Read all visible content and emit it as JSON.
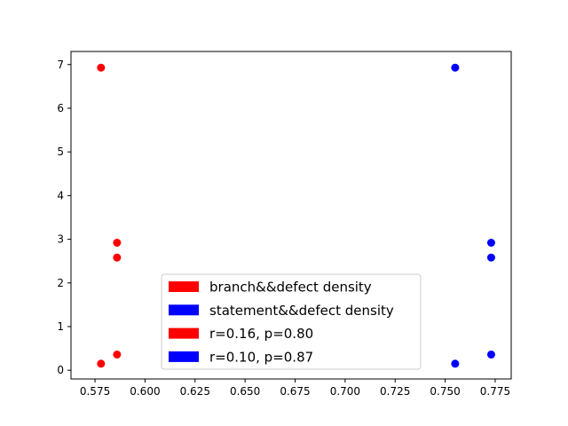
{
  "chart_data": {
    "type": "scatter",
    "title": "",
    "xlabel": "",
    "ylabel": "",
    "xlim": [
      0.563,
      0.783
    ],
    "ylim": [
      -0.2,
      7.3
    ],
    "x_ticks": [
      0.575,
      0.6,
      0.625,
      0.65,
      0.675,
      0.7,
      0.725,
      0.75,
      0.775
    ],
    "x_tick_labels": [
      "0.575",
      "0.600",
      "0.625",
      "0.650",
      "0.675",
      "0.700",
      "0.725",
      "0.750",
      "0.775"
    ],
    "y_ticks": [
      0,
      1,
      2,
      3,
      4,
      5,
      6,
      7
    ],
    "y_tick_labels": [
      "0",
      "1",
      "2",
      "3",
      "4",
      "5",
      "6",
      "7"
    ],
    "grid": false,
    "series": [
      {
        "name": "branch&&defect density",
        "color": "#ff0000",
        "x": [
          0.578,
          0.586,
          0.586,
          0.578,
          0.586
        ],
        "y": [
          6.93,
          2.92,
          2.58,
          0.15,
          0.36
        ]
      },
      {
        "name": "statement&&defect density",
        "color": "#0000ff",
        "x": [
          0.755,
          0.773,
          0.773,
          0.755,
          0.773
        ],
        "y": [
          6.93,
          2.92,
          2.58,
          0.15,
          0.36
        ]
      }
    ],
    "legend": {
      "position": "lower center",
      "entries": [
        {
          "label": "branch&&defect density",
          "color": "#ff0000"
        },
        {
          "label": "statement&&defect density",
          "color": "#0000ff"
        },
        {
          "label": "r=0.16, p=0.80",
          "color": "#ff0000"
        },
        {
          "label": "r=0.10, p=0.87",
          "color": "#0000ff"
        }
      ]
    }
  }
}
